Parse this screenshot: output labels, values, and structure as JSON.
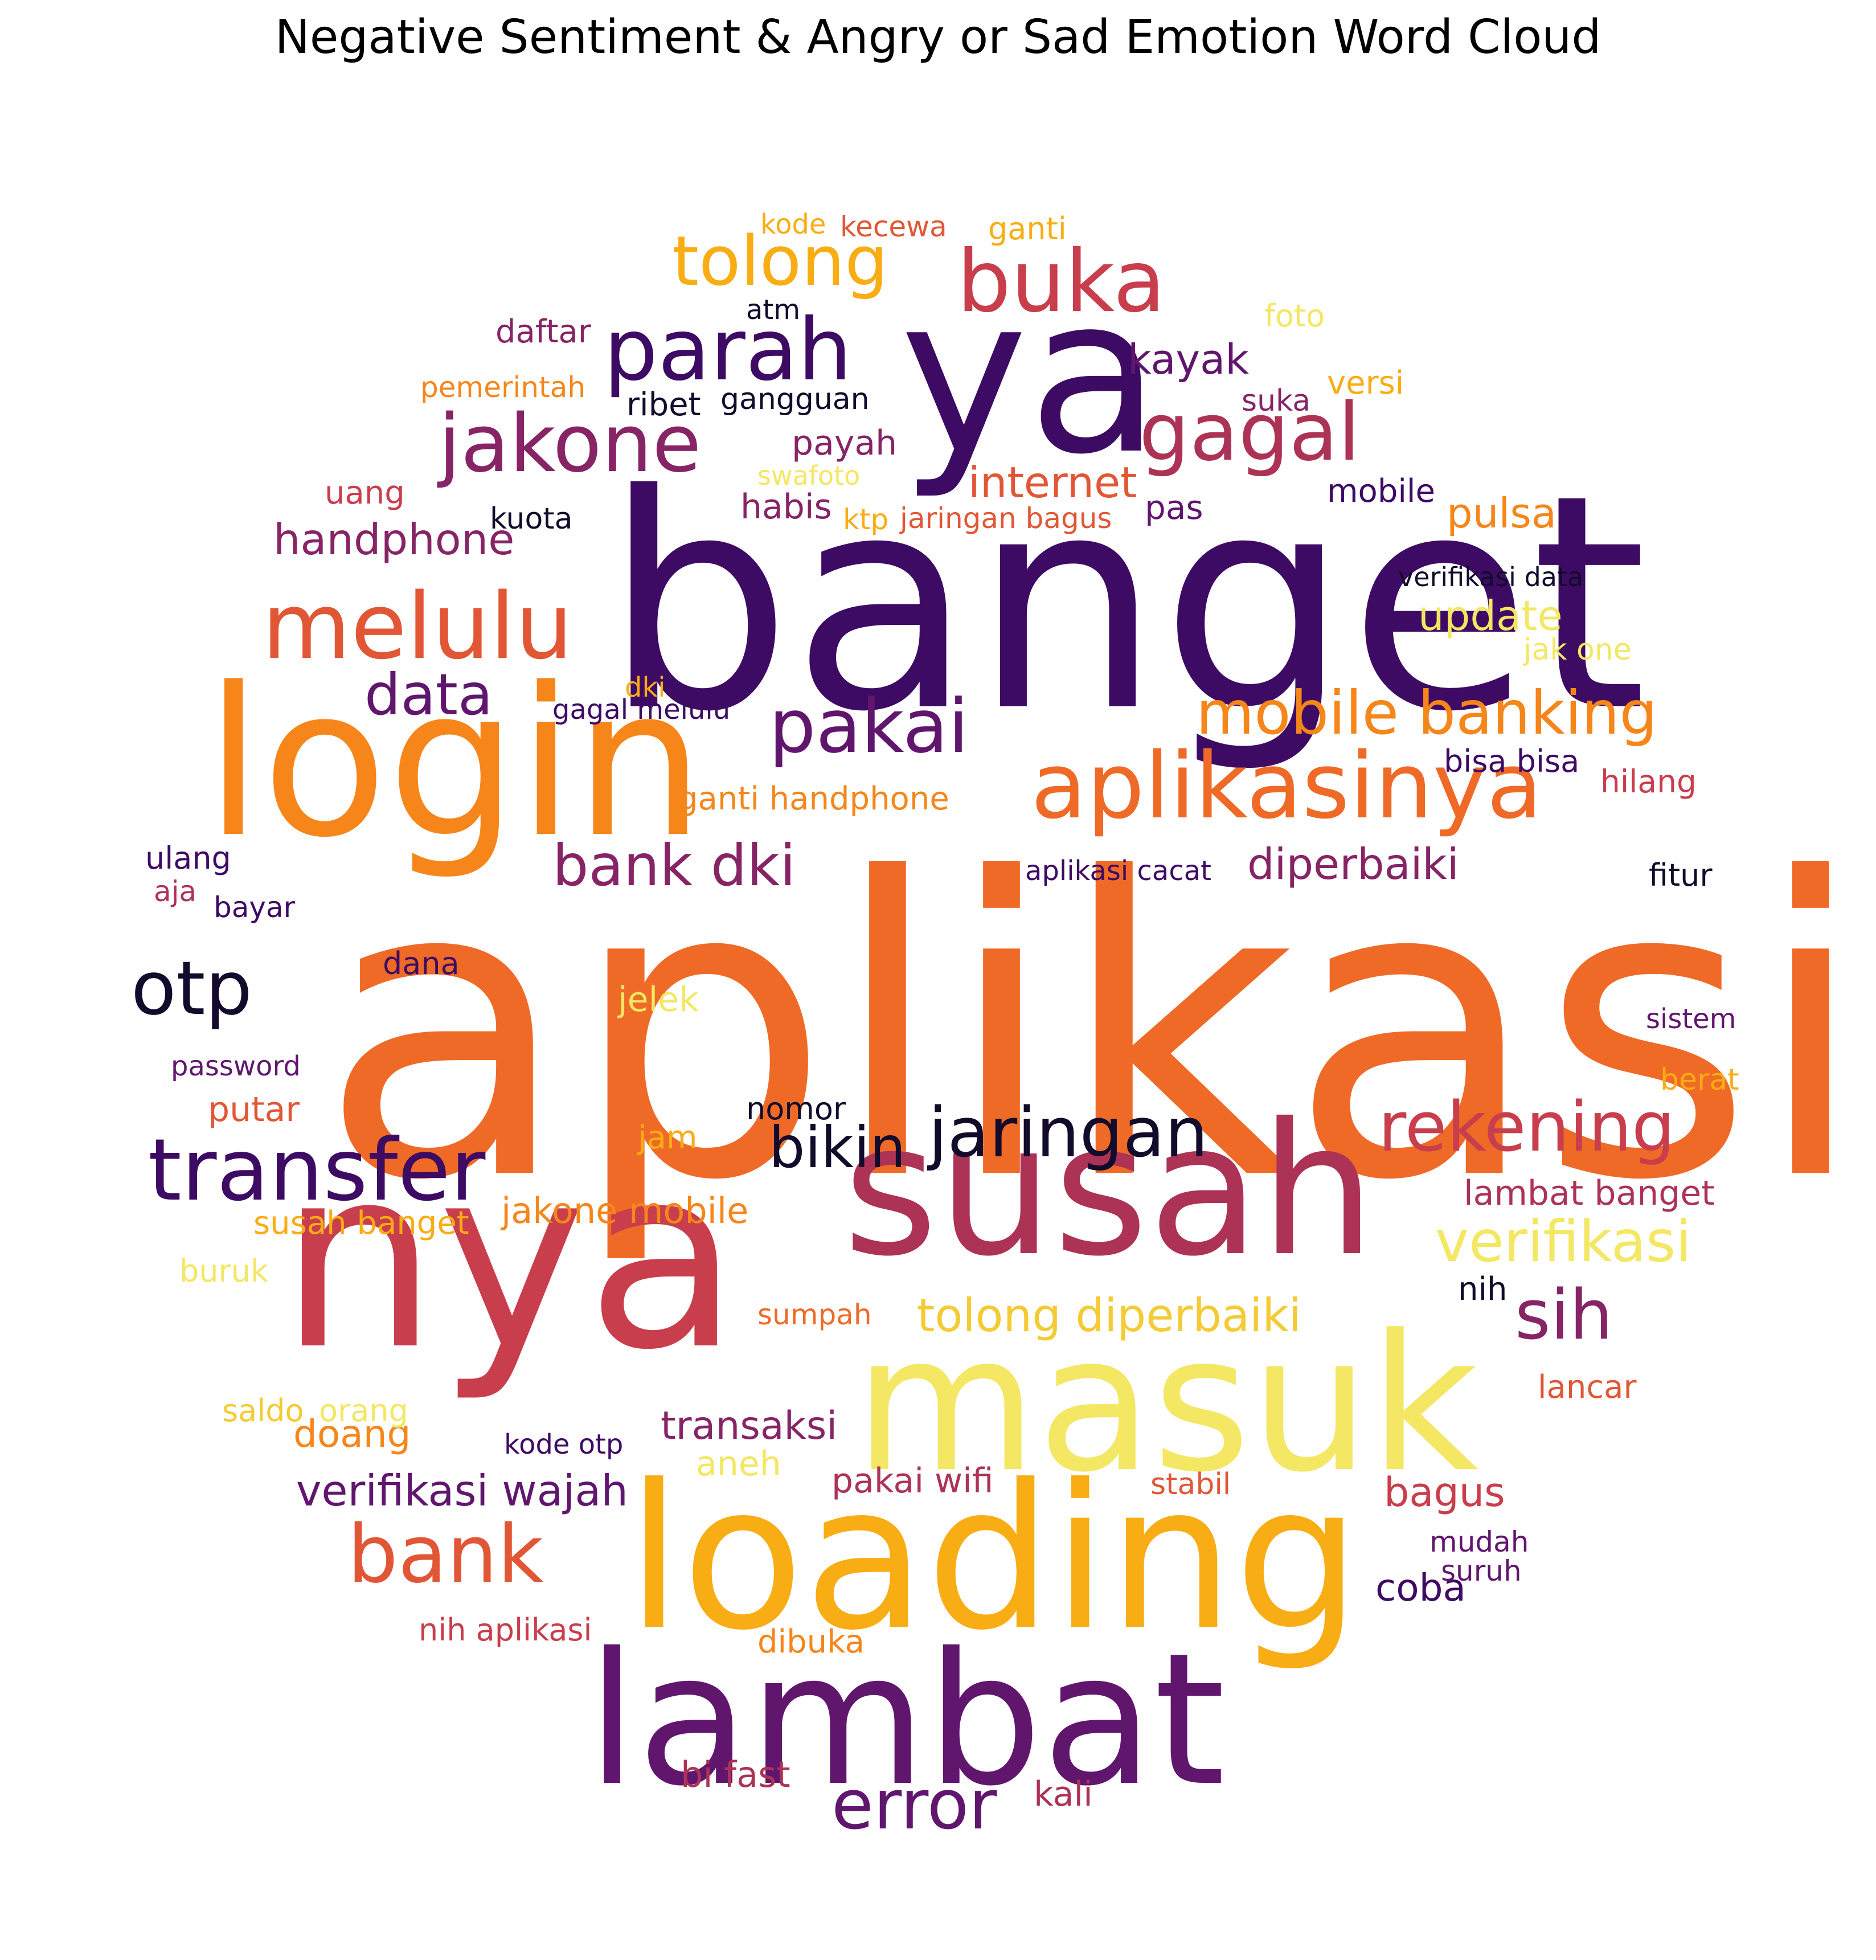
{
  "title": "Negative Sentiment & Angry or Sad Emotion Word Cloud",
  "palette": {
    "c1": "#120b2b",
    "c2": "#3e0b64",
    "c3": "#61166e",
    "c4": "#862466",
    "c5": "#ac3356",
    "c6": "#c93e4c",
    "c7": "#e15736",
    "c8": "#ef6a27",
    "c9": "#f6861a",
    "c10": "#f9ad14",
    "c11": "#f4cb34",
    "c12": "#f3e763"
  },
  "words": [
    {
      "text": "aplikasi",
      "color": "#ef6a27"
    },
    {
      "text": "banget",
      "color": "#3e0b64"
    },
    {
      "text": "ya",
      "color": "#3e0b64"
    },
    {
      "text": "login",
      "color": "#f6861a"
    },
    {
      "text": "nya",
      "color": "#c93e4c"
    },
    {
      "text": "susah",
      "color": "#ac3356"
    },
    {
      "text": "masuk",
      "color": "#f3e763"
    },
    {
      "text": "loading",
      "color": "#f9ad14"
    },
    {
      "text": "lambat",
      "color": "#61166e"
    },
    {
      "text": "melulu",
      "color": "#e15736"
    },
    {
      "text": "aplikasinya",
      "color": "#ef6a27"
    },
    {
      "text": "parah",
      "color": "#3e0b64"
    },
    {
      "text": "buka",
      "color": "#c93e4c"
    },
    {
      "text": "tolong",
      "color": "#f9ad14"
    },
    {
      "text": "gagal",
      "color": "#ac3356"
    },
    {
      "text": "jakone",
      "color": "#862466"
    },
    {
      "text": "transfer",
      "color": "#3e0b64"
    },
    {
      "text": "rekening",
      "color": "#c93e4c"
    },
    {
      "text": "jaringan",
      "color": "#120b2b"
    },
    {
      "text": "bank",
      "color": "#e15736"
    },
    {
      "text": "otp",
      "color": "#120b2b"
    },
    {
      "text": "pakai",
      "color": "#61166e"
    },
    {
      "text": "mobile banking",
      "color": "#f6861a"
    },
    {
      "text": "data",
      "color": "#61166e"
    },
    {
      "text": "bank dki",
      "color": "#862466"
    },
    {
      "text": "error",
      "color": "#61166e"
    },
    {
      "text": "sih",
      "color": "#862466"
    },
    {
      "text": "verifikasi",
      "color": "#f3e763"
    },
    {
      "text": "bikin",
      "color": "#120b2b"
    },
    {
      "text": "tolong diperbaiki",
      "color": "#f4cb34"
    },
    {
      "text": "handphone",
      "color": "#862466"
    },
    {
      "text": "diperbaiki",
      "color": "#862466"
    },
    {
      "text": "verifikasi wajah",
      "color": "#61166e"
    },
    {
      "text": "internet",
      "color": "#e15736"
    },
    {
      "text": "kayak",
      "color": "#61166e"
    },
    {
      "text": "pulsa",
      "color": "#f6861a"
    },
    {
      "text": "update",
      "color": "#f3e763"
    },
    {
      "text": "transaksi",
      "color": "#862466"
    },
    {
      "text": "bagus",
      "color": "#c93e4c"
    },
    {
      "text": "coba",
      "color": "#3e0b64"
    },
    {
      "text": "doang",
      "color": "#f6861a"
    },
    {
      "text": "jakone mobile",
      "color": "#f6861a"
    },
    {
      "text": "pakai wifi",
      "color": "#ac3356"
    },
    {
      "text": "bi fast",
      "color": "#ac3356"
    },
    {
      "text": "kali",
      "color": "#ac3356"
    },
    {
      "text": "lambat banget",
      "color": "#ac3356"
    },
    {
      "text": "jelek",
      "color": "#f3e763"
    },
    {
      "text": "habis",
      "color": "#862466"
    },
    {
      "text": "payah",
      "color": "#862466"
    },
    {
      "text": "pas",
      "color": "#61166e"
    },
    {
      "text": "daftar",
      "color": "#862466"
    },
    {
      "text": "versi",
      "color": "#f9ad14"
    },
    {
      "text": "mobile",
      "color": "#3e0b64"
    },
    {
      "text": "ribet",
      "color": "#120b2b"
    },
    {
      "text": "gangguan",
      "color": "#120b2b"
    },
    {
      "text": "suka",
      "color": "#862466"
    },
    {
      "text": "verifikasi data",
      "color": "#120b2b"
    },
    {
      "text": "jak one",
      "color": "#f3e763"
    },
    {
      "text": "hilang",
      "color": "#c93e4c"
    },
    {
      "text": "bisa bisa",
      "color": "#3e0b64"
    },
    {
      "text": "fitur",
      "color": "#120b2b"
    },
    {
      "text": "sistem",
      "color": "#61166e"
    },
    {
      "text": "berat",
      "color": "#f9ad14"
    },
    {
      "text": "ganti handphone",
      "color": "#f6861a"
    },
    {
      "text": "gagal melulu",
      "color": "#3e0b64"
    },
    {
      "text": "aplikasi cacat",
      "color": "#3e0b64"
    },
    {
      "text": "kode",
      "color": "#f9ad14"
    },
    {
      "text": "kecewa",
      "color": "#e15736"
    },
    {
      "text": "ganti",
      "color": "#f9ad14"
    },
    {
      "text": "atm",
      "color": "#120b2b"
    },
    {
      "text": "foto",
      "color": "#f3e763"
    },
    {
      "text": "pemerintah",
      "color": "#f6861a"
    },
    {
      "text": "swafoto",
      "color": "#f3e763"
    },
    {
      "text": "uang",
      "color": "#c93e4c"
    },
    {
      "text": "kuota",
      "color": "#120b2b"
    },
    {
      "text": "ktp",
      "color": "#f9ad14"
    },
    {
      "text": "jaringan bagus",
      "color": "#e15736"
    },
    {
      "text": "dki",
      "color": "#f9ad14"
    },
    {
      "text": "ulang",
      "color": "#3e0b64"
    },
    {
      "text": "aja",
      "color": "#ac3356"
    },
    {
      "text": "bayar",
      "color": "#3e0b64"
    },
    {
      "text": "dana",
      "color": "#3e0b64"
    },
    {
      "text": "password",
      "color": "#61166e"
    },
    {
      "text": "putar",
      "color": "#e15736"
    },
    {
      "text": "nomor",
      "color": "#120b2b"
    },
    {
      "text": "jam",
      "color": "#f9ad14"
    },
    {
      "text": "susah banget",
      "color": "#f9ad14"
    },
    {
      "text": "buruk",
      "color": "#f3e763"
    },
    {
      "text": "sumpah",
      "color": "#ef6a27"
    },
    {
      "text": "nih",
      "color": "#120b2b"
    },
    {
      "text": "lancar",
      "color": "#e15736"
    },
    {
      "text": "saldo",
      "color": "#f4cb34"
    },
    {
      "text": "orang",
      "color": "#f3e763"
    },
    {
      "text": "kode otp",
      "color": "#3e0b64"
    },
    {
      "text": "aneh",
      "color": "#f3e763"
    },
    {
      "text": "stabil",
      "color": "#e15736"
    },
    {
      "text": "mudah",
      "color": "#61166e"
    },
    {
      "text": "suruh",
      "color": "#61166e"
    },
    {
      "text": "nih aplikasi",
      "color": "#c93e4c"
    },
    {
      "text": "dibuka",
      "color": "#f6861a"
    }
  ]
}
